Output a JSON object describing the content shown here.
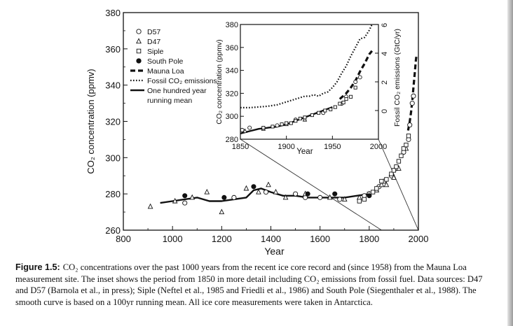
{
  "chart_data": [
    {
      "id": "main",
      "type": "line",
      "xlabel": "Year",
      "ylabel": "CO₂ concentration (ppmv)",
      "xlim": [
        800,
        2000
      ],
      "ylim": [
        260,
        380
      ],
      "xticks": [
        800,
        1000,
        1200,
        1400,
        1600,
        1800,
        2000
      ],
      "yticks": [
        260,
        280,
        300,
        320,
        340,
        360,
        380
      ],
      "legend_position": "upper-left",
      "legend": [
        {
          "label": "D57",
          "marker": "circle-open"
        },
        {
          "label": "D47",
          "marker": "triangle-open"
        },
        {
          "label": "Siple",
          "marker": "square-open"
        },
        {
          "label": "South Pole",
          "marker": "circle-filled"
        },
        {
          "label": "Mauna Loa",
          "marker": "dashed-line"
        },
        {
          "label": "Fossil CO₂ emissions",
          "marker": "dotted-line"
        },
        {
          "label": "One hundred year running mean",
          "lines": [
            "One hundred year",
            "running mean"
          ],
          "marker": "solid-line"
        }
      ],
      "series": [
        {
          "name": "D57",
          "marker": "circle-open",
          "points": [
            [
              1050,
              275
            ],
            [
              1250,
              278
            ],
            [
              1380,
              281
            ],
            [
              1500,
              280
            ],
            [
              1540,
              278
            ],
            [
              1600,
              278
            ],
            [
              1680,
              277
            ],
            [
              1780,
              279
            ],
            [
              1840,
              284
            ],
            [
              1860,
              287
            ],
            [
              1890,
              290
            ],
            [
              1910,
              294
            ],
            [
              1940,
              303
            ],
            [
              1960,
              310
            ],
            [
              1965,
              318
            ],
            [
              1975,
              330
            ],
            [
              1980,
              334
            ]
          ]
        },
        {
          "name": "D47",
          "marker": "triangle-open",
          "points": [
            [
              910,
              273
            ],
            [
              1010,
              276
            ],
            [
              1080,
              278
            ],
            [
              1140,
              281
            ],
            [
              1200,
              270
            ],
            [
              1300,
              283
            ],
            [
              1350,
              281
            ],
            [
              1390,
              285
            ],
            [
              1420,
              281
            ],
            [
              1460,
              278
            ],
            [
              1540,
              280
            ],
            [
              1640,
              278
            ],
            [
              1700,
              277
            ],
            [
              1760,
              278
            ],
            [
              1800,
              280
            ],
            [
              1830,
              282
            ],
            [
              1850,
              285
            ],
            [
              1870,
              285
            ],
            [
              1900,
              289
            ],
            [
              1920,
              294
            ],
            [
              1950,
              305
            ]
          ]
        },
        {
          "name": "Siple",
          "marker": "square-open",
          "points": [
            [
              1760,
              276
            ],
            [
              1780,
              277
            ],
            [
              1800,
              280
            ],
            [
              1815,
              281
            ],
            [
              1830,
              283
            ],
            [
              1850,
              287
            ],
            [
              1870,
              288
            ],
            [
              1890,
              291
            ],
            [
              1900,
              293
            ],
            [
              1910,
              295
            ],
            [
              1920,
              298
            ],
            [
              1930,
              301
            ],
            [
              1940,
              305
            ],
            [
              1950,
              307
            ],
            [
              1960,
              312
            ]
          ]
        },
        {
          "name": "South Pole",
          "marker": "circle-filled",
          "points": [
            [
              1050,
              279
            ],
            [
              1210,
              278
            ],
            [
              1330,
              284
            ],
            [
              1550,
              280
            ],
            [
              1660,
              280
            ],
            [
              1800,
              279
            ]
          ]
        },
        {
          "name": "Mauna Loa",
          "marker": "dashed-line",
          "points": [
            [
              1958,
              315
            ],
            [
              1965,
              320
            ],
            [
              1970,
              325
            ],
            [
              1975,
              331
            ],
            [
              1980,
              339
            ],
            [
              1985,
              346
            ],
            [
              1990,
              354
            ],
            [
              1993,
              357
            ]
          ]
        },
        {
          "name": "One hundred year running mean",
          "marker": "solid-line",
          "points": [
            [
              950,
              275
            ],
            [
              1000,
              276
            ],
            [
              1050,
              277
            ],
            [
              1100,
              278
            ],
            [
              1150,
              276
            ],
            [
              1200,
              276
            ],
            [
              1250,
              277
            ],
            [
              1300,
              278
            ],
            [
              1330,
              282
            ],
            [
              1360,
              283
            ],
            [
              1400,
              281
            ],
            [
              1450,
              279
            ],
            [
              1500,
              279
            ],
            [
              1550,
              278
            ],
            [
              1600,
              278
            ],
            [
              1650,
              278
            ],
            [
              1700,
              278
            ],
            [
              1750,
              279
            ],
            [
              1800,
              280
            ]
          ]
        }
      ]
    },
    {
      "id": "inset",
      "type": "line",
      "xlabel": "Year",
      "ylabel": "CO₂ concentration (ppmv)",
      "y2label": "Fossil CO₂ emissions (GtC/yr)",
      "xlim": [
        1850,
        2000
      ],
      "ylim": [
        280,
        380
      ],
      "y2lim": [
        -2,
        6
      ],
      "xticks": [
        1850,
        1900,
        1950,
        2000
      ],
      "yticks": [
        280,
        300,
        320,
        340,
        360,
        380
      ],
      "y2ticks": [
        0,
        2,
        4,
        6
      ],
      "series": [
        {
          "name": "D57",
          "marker": "circle-open",
          "points": [
            [
              1852,
              288
            ],
            [
              1860,
              290
            ],
            [
              1890,
              292
            ],
            [
              1910,
              297
            ],
            [
              1940,
              303
            ],
            [
              1960,
              311
            ],
            [
              1965,
              317
            ],
            [
              1975,
              330
            ],
            [
              1980,
              334
            ]
          ]
        },
        {
          "name": "D47",
          "marker": "triangle-open",
          "points": [
            [
              1855,
              287
            ],
            [
              1875,
              289
            ],
            [
              1900,
              293
            ],
            [
              1920,
              297
            ]
          ]
        },
        {
          "name": "Siple",
          "marker": "square-open",
          "points": [
            [
              1875,
              290
            ],
            [
              1885,
              291
            ],
            [
              1895,
              293
            ],
            [
              1900,
              294
            ],
            [
              1905,
              294
            ],
            [
              1910,
              296
            ],
            [
              1915,
              298
            ],
            [
              1920,
              299
            ],
            [
              1928,
              301
            ],
            [
              1935,
              303
            ],
            [
              1942,
              305
            ],
            [
              1948,
              306
            ],
            [
              1953,
              308
            ],
            [
              1958,
              311
            ],
            [
              1962,
              312
            ],
            [
              1965,
              315
            ],
            [
              1970,
              317
            ],
            [
              1975,
              325
            ]
          ]
        },
        {
          "name": "Mauna Loa",
          "marker": "dashed-line",
          "points": [
            [
              1958,
              315
            ],
            [
              1965,
              320
            ],
            [
              1970,
              325
            ],
            [
              1975,
              331
            ],
            [
              1980,
              339
            ],
            [
              1985,
              346
            ],
            [
              1990,
              354
            ],
            [
              1993,
              357
            ]
          ]
        },
        {
          "name": "One hundred year running mean",
          "marker": "solid-line",
          "points": [
            [
              1850,
              285
            ],
            [
              1860,
              287
            ],
            [
              1870,
              289
            ],
            [
              1880,
              290
            ],
            [
              1890,
              291
            ],
            [
              1900,
              293
            ],
            [
              1910,
              296
            ],
            [
              1920,
              299
            ],
            [
              1930,
              302
            ],
            [
              1940,
              305
            ],
            [
              1950,
              308
            ]
          ]
        },
        {
          "name": "Fossil CO₂ emissions",
          "marker": "dotted-line",
          "axis": "y2",
          "points": [
            [
              1850,
              0.2
            ],
            [
              1860,
              0.2
            ],
            [
              1870,
              0.25
            ],
            [
              1880,
              0.3
            ],
            [
              1890,
              0.4
            ],
            [
              1900,
              0.6
            ],
            [
              1910,
              0.8
            ],
            [
              1915,
              0.9
            ],
            [
              1920,
              1.0
            ],
            [
              1925,
              1.0
            ],
            [
              1930,
              1.1
            ],
            [
              1935,
              1.0
            ],
            [
              1940,
              1.2
            ],
            [
              1945,
              1.3
            ],
            [
              1950,
              1.6
            ],
            [
              1955,
              2.0
            ],
            [
              1960,
              2.6
            ],
            [
              1965,
              3.1
            ],
            [
              1970,
              3.8
            ],
            [
              1975,
              4.4
            ],
            [
              1980,
              5.0
            ],
            [
              1985,
              5.1
            ],
            [
              1990,
              5.6
            ],
            [
              1993,
              6.0
            ]
          ]
        }
      ]
    }
  ],
  "caption": {
    "label": "Figure 1.5:",
    "lines": [
      "CO₂ concentrations over the past 1000 years from the recent ice core record and (since 1958) from the Mauna Loa",
      "measurement site. The inset shows the period from 1850 in more detail including CO₂ emissions from fossil fuel. Data sources: D47",
      "and D57 (Barnola et al., in press); Siple (Neftel et al., 1985 and Friedli et al., 1986) and South Pole (Siegenthaler et al., 1988). The",
      "smooth curve is based on a 100yr running mean. All ice core measurements were taken in Antarctica."
    ]
  }
}
